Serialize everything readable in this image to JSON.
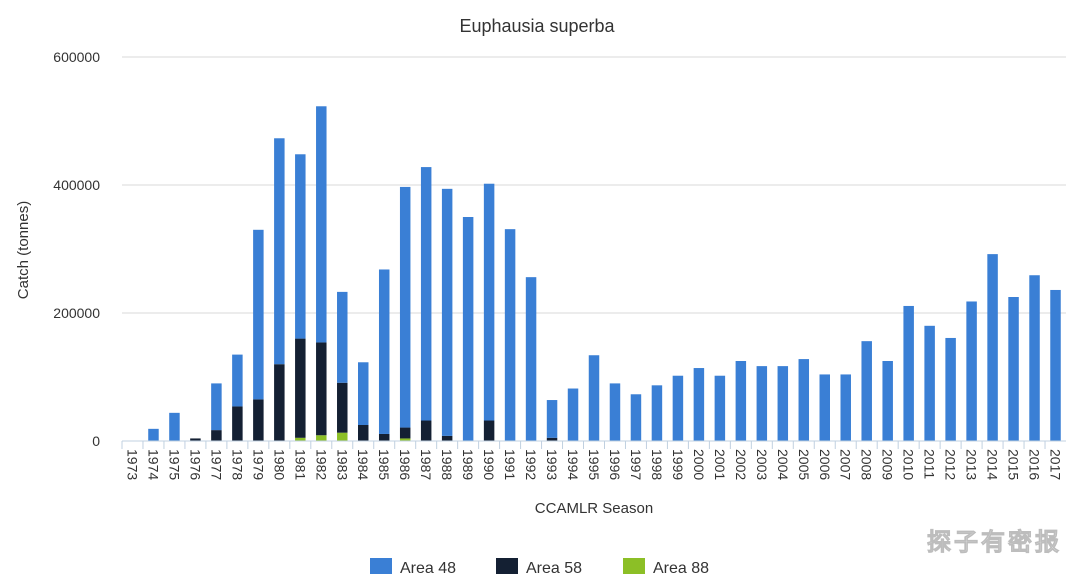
{
  "chart_data": {
    "type": "bar",
    "stacked": true,
    "title": "Euphausia superba",
    "xlabel": "CCAMLR Season",
    "ylabel": "Catch (tonnes)",
    "ylim": [
      0,
      600000
    ],
    "yticks": [
      "0",
      "200000",
      "400000",
      "600000"
    ],
    "grid": true,
    "legend_position": "bottom-center",
    "categories": [
      "1973",
      "1974",
      "1975",
      "1976",
      "1977",
      "1978",
      "1979",
      "1980",
      "1981",
      "1982",
      "1983",
      "1984",
      "1985",
      "1986",
      "1987",
      "1988",
      "1989",
      "1990",
      "1991",
      "1992",
      "1993",
      "1994",
      "1995",
      "1996",
      "1997",
      "1998",
      "1999",
      "2000",
      "2001",
      "2002",
      "2003",
      "2004",
      "2005",
      "2006",
      "2007",
      "2008",
      "2009",
      "2010",
      "2011",
      "2012",
      "2013",
      "2014",
      "2015",
      "2016",
      "2017"
    ],
    "series": [
      {
        "name": "Area 48",
        "color": "#3a7fd5",
        "values": [
          0,
          19000,
          44000,
          0,
          73000,
          81000,
          265000,
          353000,
          288000,
          369000,
          142000,
          98000,
          257000,
          376000,
          396000,
          386000,
          350000,
          370000,
          331000,
          256000,
          59000,
          82000,
          134000,
          90000,
          73000,
          87000,
          102000,
          114000,
          102000,
          125000,
          117000,
          117000,
          128000,
          104000,
          104000,
          156000,
          125000,
          211000,
          180000,
          161000,
          218000,
          292000,
          225000,
          259000,
          236000
        ]
      },
      {
        "name": "Area 58",
        "color": "#142033",
        "values": [
          0,
          0,
          0,
          4000,
          17000,
          54000,
          65000,
          120000,
          155000,
          145000,
          78000,
          25000,
          11000,
          17000,
          32000,
          8000,
          0,
          32000,
          0,
          0,
          5000,
          0,
          0,
          0,
          0,
          0,
          0,
          0,
          0,
          0,
          0,
          0,
          0,
          0,
          0,
          0,
          0,
          0,
          0,
          0,
          0,
          0,
          0,
          0,
          0
        ]
      },
      {
        "name": "Area 88",
        "color": "#8cbf26",
        "values": [
          0,
          0,
          0,
          0,
          0,
          0,
          0,
          0,
          5000,
          9000,
          13000,
          0,
          0,
          4000,
          0,
          0,
          0,
          0,
          0,
          0,
          0,
          0,
          0,
          0,
          0,
          0,
          0,
          0,
          0,
          0,
          0,
          0,
          0,
          0,
          0,
          0,
          0,
          0,
          0,
          0,
          0,
          0,
          0,
          0,
          0
        ]
      }
    ]
  },
  "watermark": "探子有密报"
}
